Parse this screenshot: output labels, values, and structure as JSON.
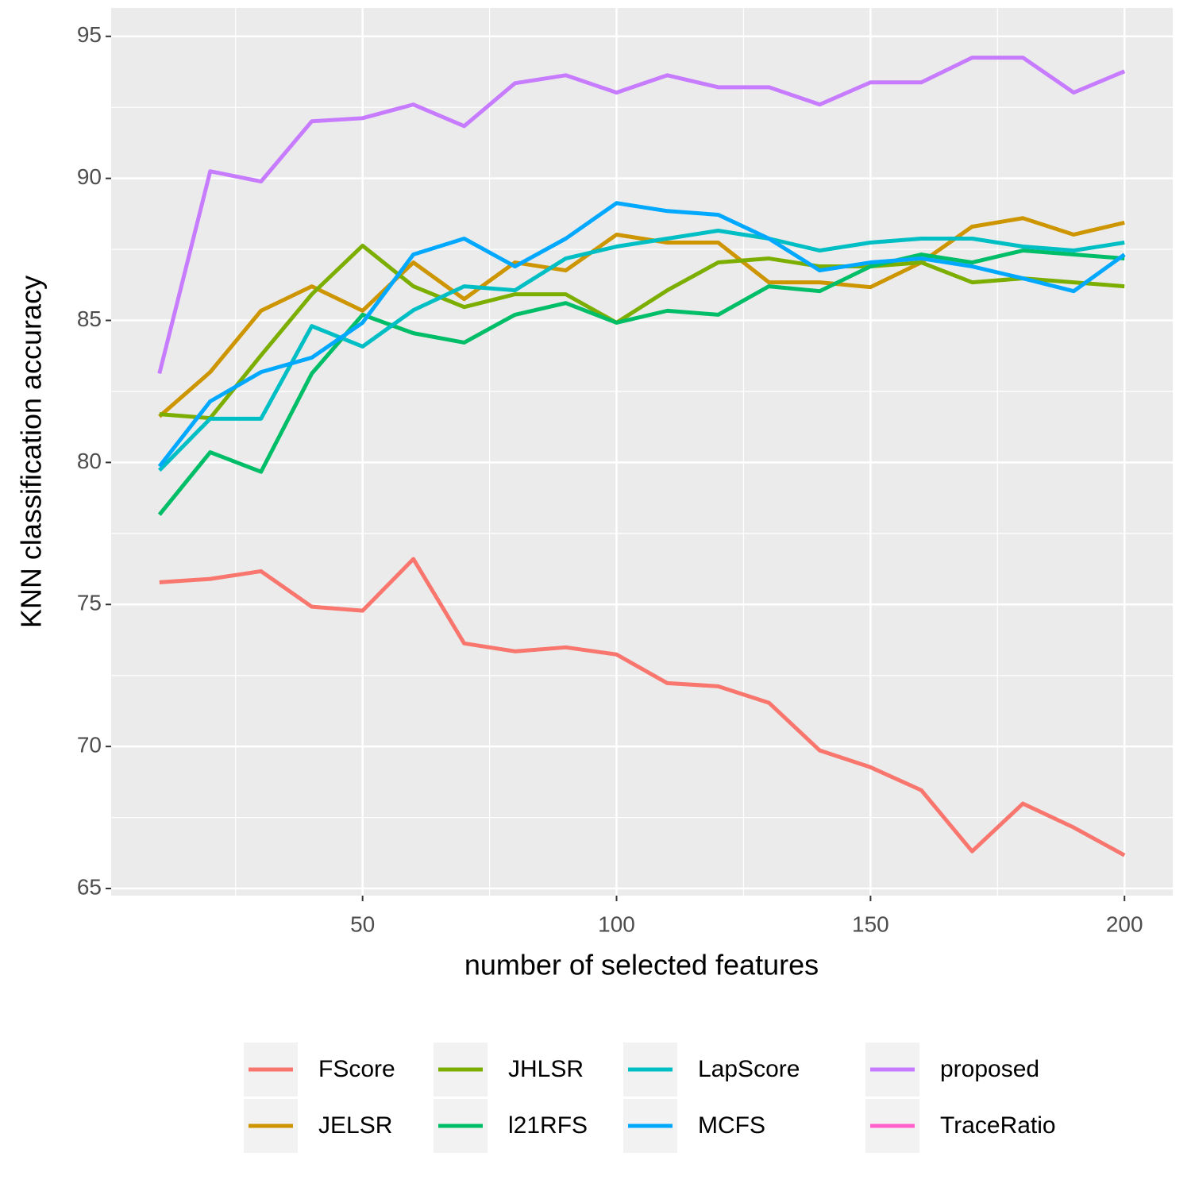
{
  "chart_data": {
    "type": "line",
    "x_label": "number of selected features",
    "y_label": "KNN classification accuracy",
    "x": [
      10,
      20,
      30,
      40,
      50,
      60,
      70,
      80,
      90,
      100,
      110,
      120,
      130,
      140,
      150,
      160,
      170,
      180,
      190,
      200
    ],
    "series": [
      {
        "name": "FScore",
        "color": "#F8766D",
        "values": [
          75.78,
          75.9,
          76.17,
          74.92,
          74.78,
          76.6,
          73.63,
          73.35,
          73.49,
          73.24,
          72.23,
          72.12,
          71.54,
          69.86,
          69.27,
          68.46,
          66.31,
          67.99,
          67.15,
          66.17
        ]
      },
      {
        "name": "JELSR",
        "color": "#CD9600",
        "values": [
          81.62,
          83.18,
          85.34,
          86.2,
          85.34,
          87.04,
          85.75,
          87.04,
          86.76,
          88.02,
          87.74,
          87.74,
          86.34,
          86.34,
          86.17,
          87.04,
          88.3,
          88.6,
          88.02,
          88.44
        ]
      },
      {
        "name": "JHLSR",
        "color": "#7CAE00",
        "values": [
          81.7,
          81.56,
          83.77,
          85.92,
          87.63,
          86.2,
          85.47,
          85.92,
          85.92,
          84.92,
          86.06,
          87.04,
          87.18,
          86.9,
          86.9,
          87.04,
          86.34,
          86.48,
          86.34,
          86.2
        ]
      },
      {
        "name": "l21RFS",
        "color": "#00BE67",
        "values": [
          78.16,
          80.36,
          79.67,
          83.13,
          85.2,
          84.55,
          84.22,
          85.2,
          85.61,
          84.92,
          85.34,
          85.2,
          86.2,
          86.03,
          86.9,
          87.32,
          87.04,
          87.46,
          87.32,
          87.18
        ]
      },
      {
        "name": "LapScore",
        "color": "#00BFC4",
        "values": [
          79.72,
          81.54,
          81.54,
          84.8,
          84.08,
          85.36,
          86.2,
          86.06,
          87.18,
          87.6,
          87.88,
          88.16,
          87.88,
          87.46,
          87.74,
          87.88,
          87.88,
          87.6,
          87.46,
          87.74
        ]
      },
      {
        "name": "MCFS",
        "color": "#00A9FF",
        "values": [
          79.86,
          82.15,
          83.18,
          83.69,
          84.92,
          87.32,
          87.88,
          86.9,
          87.88,
          89.13,
          88.85,
          88.72,
          87.88,
          86.76,
          87.04,
          87.18,
          86.9,
          86.48,
          86.03,
          87.32
        ]
      },
      {
        "name": "proposed",
        "color": "#C77CFF",
        "values": [
          83.13,
          90.25,
          89.89,
          92.01,
          92.12,
          92.6,
          91.84,
          93.35,
          93.63,
          93.02,
          93.63,
          93.21,
          93.21,
          92.6,
          93.38,
          93.38,
          94.25,
          94.25,
          93.02,
          93.77
        ]
      },
      {
        "name": "TraceRatio",
        "color": "#FF61CC",
        "values": [
          null,
          null,
          null,
          null,
          null,
          null,
          null,
          null,
          null,
          null,
          null,
          null,
          null,
          null,
          null,
          null,
          null,
          null,
          null,
          null
        ]
      }
    ],
    "xlim": [
      0.5,
      209.5
    ],
    "xticks": [
      50,
      100,
      150,
      200
    ],
    "x_minor_ticks": [
      25,
      75,
      125,
      175
    ],
    "ylim": [
      64.75,
      96
    ],
    "yticks": [
      65,
      70,
      75,
      80,
      85,
      90,
      95
    ],
    "y_minor_ticks": [
      67.5,
      72.5,
      77.5,
      82.5,
      87.5,
      92.5
    ],
    "grid": true,
    "legend_position": "bottom"
  }
}
